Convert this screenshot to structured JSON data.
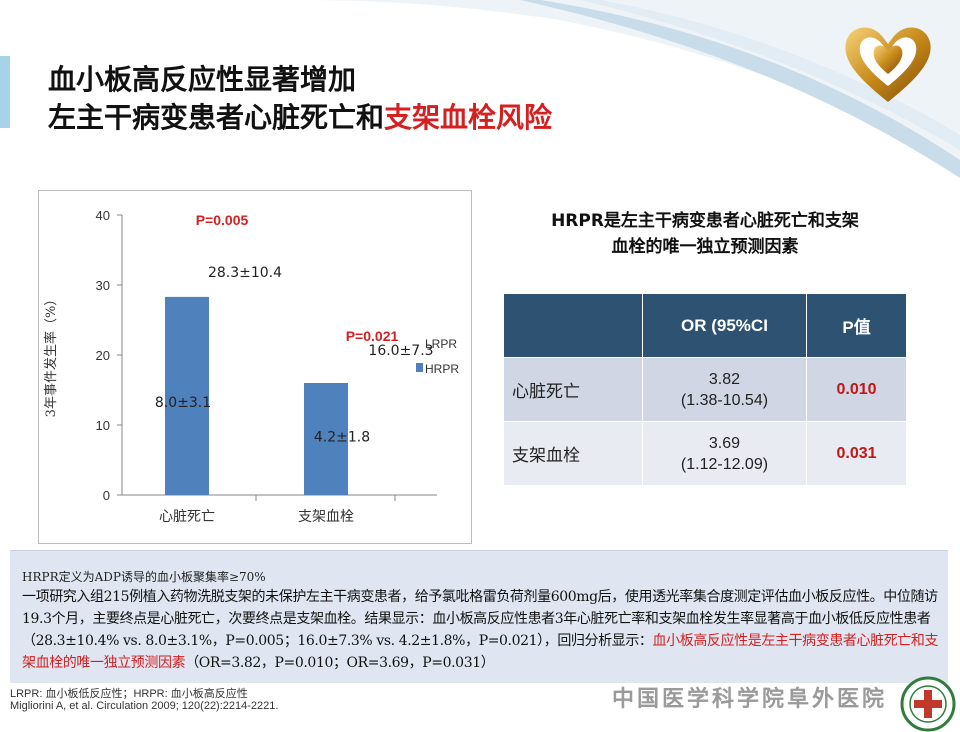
{
  "title": {
    "line1": "血小板高反应性显著增加",
    "line2_black": "左主干病变患者心脏死亡和",
    "line2_red": "支架血栓风险"
  },
  "colors": {
    "accent_red": "#d42020",
    "table_header": "#2e5272",
    "bar_blue": "#4f81bd",
    "lrpr_blue": "#4f81bd"
  },
  "chart_data": {
    "type": "bar",
    "categories": [
      "心脏死亡",
      "支架血栓"
    ],
    "series": [
      {
        "name": "LRPR",
        "values": [
          8.0,
          4.2
        ]
      },
      {
        "name": "HRPR",
        "values": [
          28.3,
          16.0
        ]
      }
    ],
    "ylabel": "3年事件发生率（%）",
    "ylim": [
      0,
      40
    ],
    "yticks": [
      0,
      10,
      20,
      30,
      40
    ],
    "annotations": {
      "p_values": [
        "P=0.005",
        "P=0.021"
      ],
      "hrpr_labels": [
        "28.3±10.4",
        "16.0±7.3"
      ],
      "lrpr_labels": [
        "8.0±3.1",
        "4.2±1.8"
      ]
    },
    "legend": [
      "LRPR",
      "HRPR"
    ],
    "legend_position": "right",
    "grid": false
  },
  "right_heading": {
    "line1": "HRPR是左主干病变患者心脏死亡和支架",
    "line2": "血栓的唯一独立预测因素"
  },
  "table": {
    "headers": [
      "",
      "OR (95%CI",
      "P值"
    ],
    "rows": [
      {
        "name": "心脏死亡",
        "or": "3.82",
        "ci": "(1.38-10.54)",
        "p": "0.010"
      },
      {
        "name": "支架血栓",
        "or": "3.69",
        "ci": "(1.12-12.09)",
        "p": "0.031"
      }
    ]
  },
  "note": {
    "definition": "HRPR定义为ADP诱导的血小板聚集率≥70%",
    "body": "一项研究入组215例植入药物洗脱支架的未保护左主干病变患者，给予氯吡格雷负荷剂量600mg后，使用透光率集合度测定评估血小板反应性。中位随访19.3个月，主要终点是心脏死亡，次要终点是支架血栓。结果显示：血小板高反应性患者3年心脏死亡率和支架血栓发生率显著高于血小板低反应性患者（28.3±10.4% vs. 8.0±3.1%，P=0.005；16.0±7.3% vs. 4.2±1.8%，P=0.021），回归分析显示：",
    "conclusion_red": "血小板高反应性是左主干病变患者心脏死亡和支架血栓的唯一独立预测因素",
    "tail": "（OR=3.82，P=0.010；OR=3.69，P=0.031）"
  },
  "footer": {
    "abbr": "LRPR: 血小板低反应性；HRPR: 血小板高反应性",
    "citation": "Migliorini A, et al. Circulation 2009; 120(22):2214-2221.",
    "hospital": "中国医学科学院阜外医院"
  },
  "icons": [
    "heart-logo-icon",
    "hospital-emblem-icon"
  ]
}
